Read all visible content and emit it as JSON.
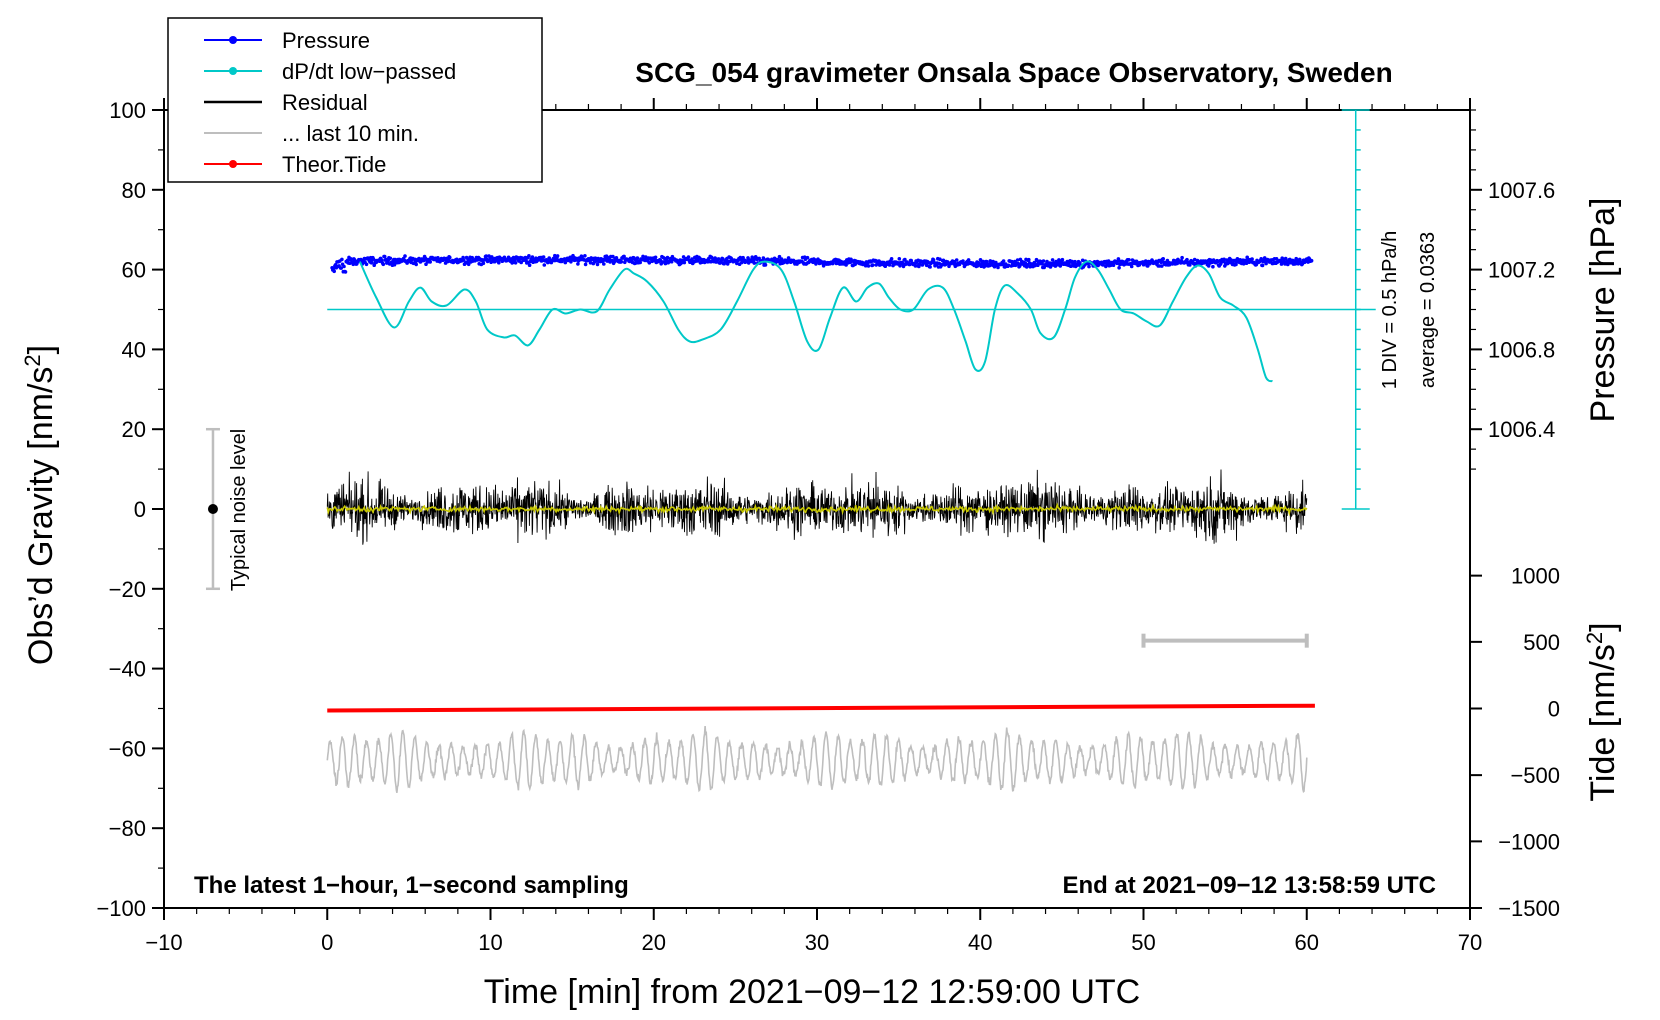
{
  "chart_data": {
    "type": "line",
    "title": "SCG_054 gravimeter Onsala Space Observatory, Sweden",
    "xlabel": "Time [min] from 2021−09−12 12:59:00 UTC",
    "ylabel": "Obs’d Gravity [nm/s²]",
    "ylabel_main": "Obs’d Gravity [nm/s",
    "ylabel_sup": "2",
    "ylabel_end": "]",
    "xlim": [
      -10,
      70
    ],
    "ylim": [
      -100,
      100
    ],
    "xticks": [
      "−10",
      "0",
      "10",
      "20",
      "30",
      "40",
      "50",
      "60",
      "70"
    ],
    "xtick_values": [
      -10,
      0,
      10,
      20,
      30,
      40,
      50,
      60,
      70
    ],
    "yticks": [
      "100",
      "80",
      "60",
      "40",
      "20",
      "0",
      "−20",
      "−40",
      "−60",
      "−80",
      "−100"
    ],
    "ytick_values": [
      100,
      80,
      60,
      40,
      20,
      0,
      -20,
      -40,
      -60,
      -80,
      -100
    ],
    "pressure_axis": {
      "label": "Pressure [hPa]",
      "ticks": [
        "1007.6",
        "1007.2",
        "1006.8",
        "1006.4"
      ],
      "tick_values": [
        1007.6,
        1007.2,
        1006.8,
        1006.4
      ],
      "gravity_equiv": [
        80,
        60,
        40,
        20
      ]
    },
    "tide_axis": {
      "label": "Tide [nm/s²]",
      "label_main": "Tide [nm/s",
      "label_sup": "2",
      "label_end": "]",
      "ticks": [
        "1000",
        "500",
        "0",
        "−500",
        "−1000",
        "−1500"
      ],
      "tick_values": [
        1000,
        500,
        0,
        -500,
        -1000,
        -1500
      ],
      "gravity_equiv": [
        -16.7,
        -33.3,
        -50,
        -66.7,
        -83.3,
        -100
      ]
    },
    "legend": [
      {
        "label": "Pressure",
        "color": "#0000ff",
        "marker": true
      },
      {
        "label": "dP/dt low−passed",
        "color": "#00c8c8",
        "marker": true
      },
      {
        "label": "Residual",
        "color": "#000000",
        "marker": false
      },
      {
        "label": "... last 10 min.",
        "color": "#bebebe",
        "marker": false
      },
      {
        "label": "Theor.Tide",
        "color": "#ff0000",
        "marker": true
      }
    ],
    "series": [
      {
        "name": "Pressure",
        "color": "#0000ff",
        "baseline_y": 62,
        "noise_amp": 1.5,
        "x_range": [
          0.3,
          60.3
        ]
      },
      {
        "name": "dP/dt low−passed",
        "color": "#00c8c8",
        "x": [
          2.0,
          3.0,
          4.1,
          5.0,
          5.7,
          6.4,
          7.3,
          8.4,
          9.1,
          9.8,
          10.8,
          11.5,
          12.3,
          13.0,
          13.8,
          14.6,
          15.5,
          16.5,
          17.3,
          18.2,
          18.8,
          19.6,
          20.6,
          21.5,
          22.2,
          23.0,
          24.1,
          25.1,
          26.1,
          26.8,
          27.8,
          28.6,
          29.4,
          30.1,
          30.8,
          31.6,
          32.4,
          33.1,
          33.8,
          34.4,
          35.1,
          35.9,
          36.8,
          37.7,
          38.4,
          39.1,
          39.7,
          40.3,
          40.9,
          41.5,
          42.3,
          43.1,
          43.7,
          44.5,
          45.2,
          45.8,
          46.5,
          47.2,
          47.9,
          48.6,
          49.4,
          50.2,
          51.0,
          51.8,
          52.6,
          53.3,
          54.0,
          54.7,
          55.5,
          56.3,
          57.0,
          57.5,
          57.9
        ],
        "y": [
          62,
          53,
          45.5,
          52,
          55.5,
          52,
          51,
          55,
          52,
          45,
          43,
          43.5,
          41,
          45,
          50,
          49,
          50,
          49.5,
          55,
          60,
          59,
          57,
          52,
          45,
          42,
          42.5,
          45,
          52,
          60,
          62,
          60,
          52,
          42,
          40,
          48,
          55.5,
          52,
          55.5,
          56.5,
          53,
          50,
          50,
          55,
          55.5,
          50,
          42,
          35,
          37,
          50,
          56,
          54,
          50,
          44,
          43,
          50,
          58,
          62,
          60,
          55,
          50,
          49,
          47,
          46,
          52,
          58,
          61,
          59,
          53,
          51,
          48,
          40,
          33,
          32
        ]
      },
      {
        "name": "dP/dt average line",
        "color": "#00c8c8",
        "value": 50,
        "x_range": [
          0,
          63
        ]
      },
      {
        "name": "Residual",
        "color": "#000000",
        "baseline_y": 0,
        "noise_amp": 9,
        "x_range": [
          0,
          60
        ]
      },
      {
        "name": "Residual smoothed",
        "color": "#c8c800",
        "baseline_y": 0,
        "noise_amp": 0.8,
        "x_range": [
          0,
          60
        ]
      },
      {
        "name": "... last 10 min.",
        "color": "#bebebe",
        "baseline_y": -63,
        "noise_amp": 6,
        "x_range": [
          0,
          60
        ]
      },
      {
        "name": "Theor.Tide",
        "color": "#ff0000",
        "x": [
          0,
          60.5
        ],
        "y": [
          -50.5,
          -49.3
        ]
      }
    ],
    "annotations": {
      "noise_label": "Typical noise level",
      "noise_bar": {
        "x": -7,
        "y_low": -20,
        "y_high": 20,
        "center": 0
      },
      "div_label": "1 DIV = 0.5 hPa/h",
      "average_label": "average = 0.0363",
      "div_scale": {
        "x": 63,
        "y_low": 0,
        "y_high": 100,
        "step": 5
      },
      "interval_bar": {
        "x_start": 50,
        "x_end": 60,
        "y": -33
      },
      "bottom_left": "The latest 1−hour, 1−second sampling",
      "bottom_right": "End at 2021−09−12 13:58:59 UTC"
    }
  }
}
